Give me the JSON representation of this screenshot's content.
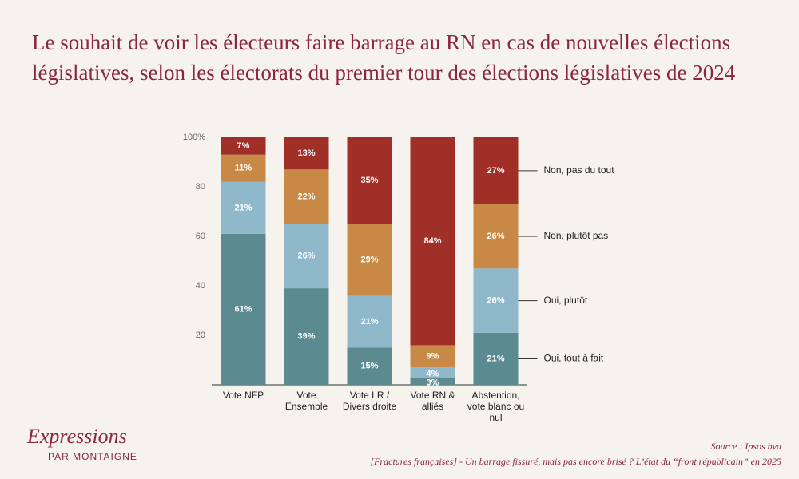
{
  "chart_data": {
    "type": "stacked-bar",
    "title": "Le souhait de voir les électeurs faire barrage au RN en cas de nouvelles élections législatives, selon les électorats du premier tour des élections législatives de 2024",
    "categories": [
      "Vote NFP",
      "Vote Ensemble",
      "Vote LR / Divers droite",
      "Vote RN & alliés",
      "Abstention, vote blanc ou nul"
    ],
    "series": [
      {
        "name": "Oui, tout à fait",
        "color": "#5b8a90",
        "values": [
          61,
          39,
          15,
          3,
          21
        ],
        "value_labels": [
          "61%",
          "39%",
          "15%",
          "3%",
          "21%"
        ]
      },
      {
        "name": "Oui, plutôt",
        "color": "#8fb9ca",
        "values": [
          21,
          26,
          21,
          4,
          26
        ],
        "value_labels": [
          "21%",
          "26%",
          "21%",
          "4%",
          "26%"
        ]
      },
      {
        "name": "Non, plutôt pas",
        "color": "#c78945",
        "values": [
          11,
          22,
          29,
          9,
          26
        ],
        "value_labels": [
          "11%",
          "22%",
          "29%",
          "9%",
          "26%"
        ]
      },
      {
        "name": "Non, pas du tout",
        "color": "#a02f28",
        "values": [
          7,
          13,
          35,
          84,
          27
        ],
        "value_labels": [
          "7%",
          "13%",
          "35%",
          "84%",
          "27%"
        ]
      }
    ],
    "ylim": [
      0,
      100
    ],
    "yticks": [
      20,
      40,
      60,
      80,
      {
        "value": 100,
        "label": "100%"
      }
    ],
    "legend": "right"
  },
  "logo": {
    "name": "Expressions",
    "tagline": "PAR MONTAIGNE"
  },
  "source": [
    "Source : Ipsos bva",
    "[Fractures françaises] - Un barrage fissuré, mais pas encore brisé ? L’état du “front républicain” en 2025"
  ]
}
